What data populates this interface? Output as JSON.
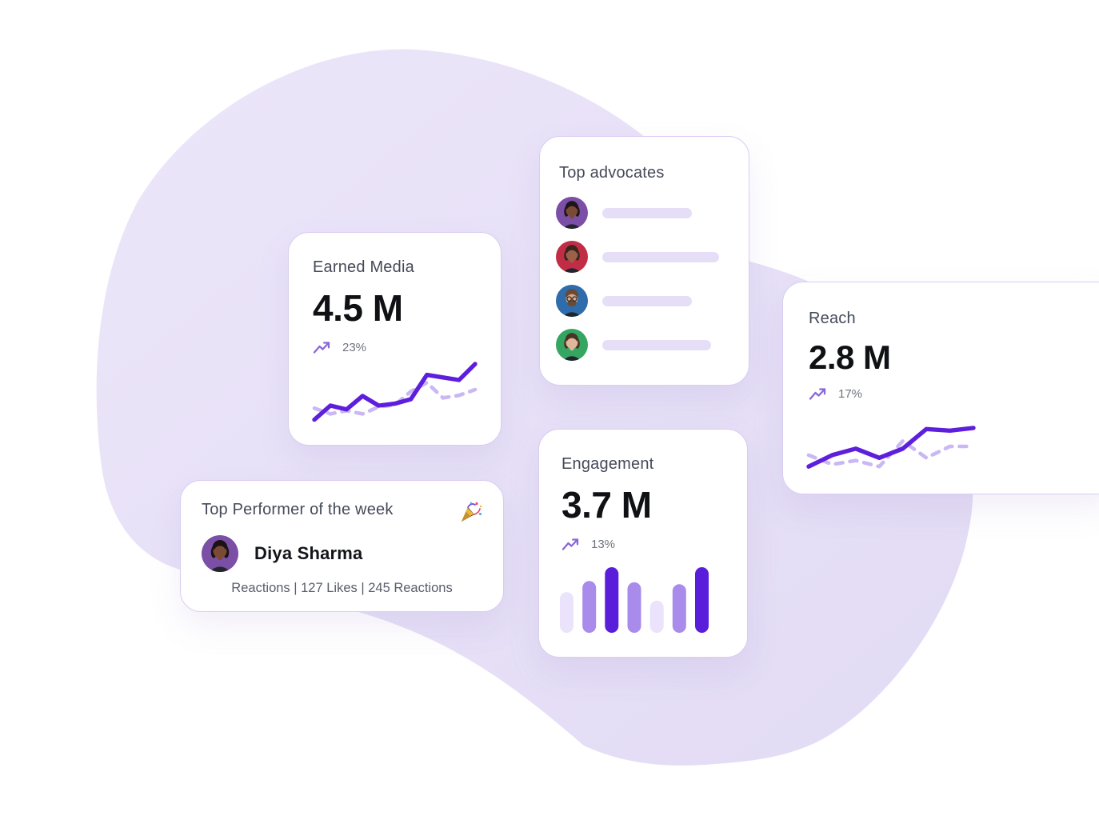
{
  "background": {
    "blob_color_start": "#ece6fa",
    "blob_color_end": "#e2dbf4",
    "card_border_color": "#d9cdf0"
  },
  "cards": {
    "earned_media": {
      "title": "Earned Media",
      "value": "4.5 M",
      "change": "23%"
    },
    "top_advocates": {
      "title": "Top advocates",
      "rows": [
        {
          "avatar": "woman-dark-skin-purple-bg",
          "bg": "#7a4fa5",
          "skin": "#7a4a35",
          "hair": "#1d1518",
          "beard": false,
          "pill_width": 112
        },
        {
          "avatar": "woman-curly-hair-red-bg",
          "bg": "#c22d46",
          "skin": "#9c6249",
          "hair": "#3a2420",
          "beard": false,
          "pill_width": 146
        },
        {
          "avatar": "man-glasses-beard-blue-bg",
          "bg": "#2e6cab",
          "skin": "#d8a888",
          "hair": "#6b4a33",
          "beard": true,
          "pill_width": 112
        },
        {
          "avatar": "person-short-hair-green-bg",
          "bg": "#35a661",
          "skin": "#e0b79b",
          "hair": "#4a3326",
          "beard": false,
          "pill_width": 136
        }
      ]
    },
    "reach": {
      "title": "Reach",
      "value": "2.8 M",
      "change": "17%"
    },
    "engagement": {
      "title": "Engagement",
      "value": "3.7 M",
      "change": "13%"
    },
    "top_performer": {
      "title": "Top Performer of the week",
      "emoji": "🎉",
      "name": "Diya Sharma",
      "avatar": {
        "bg": "#7a4fa5",
        "skin": "#7a4a35",
        "hair": "#1a1316",
        "beard": false
      },
      "stats": "Reactions | 127 Likes | 245 Reactions"
    }
  },
  "chart_data": [
    {
      "type": "line",
      "title": "Earned Media trend sparkline",
      "x": [
        1,
        2,
        3,
        4,
        5,
        6,
        7,
        8,
        9,
        10,
        11
      ],
      "series": [
        {
          "name": "current",
          "color": "#5e1fdd",
          "dashed": false,
          "values": [
            8,
            30,
            24,
            45,
            30,
            33,
            40,
            78,
            74,
            70,
            95
          ]
        },
        {
          "name": "previous",
          "color": "#c9b8f4",
          "dashed": true,
          "values": [
            26,
            17,
            22,
            17,
            28,
            31,
            52,
            66,
            42,
            46,
            55
          ]
        }
      ],
      "ylim": [
        0,
        100
      ],
      "grid": false,
      "legend": "none"
    },
    {
      "type": "line",
      "title": "Reach trend sparkline",
      "x": [
        1,
        2,
        3,
        4,
        5,
        6,
        7,
        8
      ],
      "series": [
        {
          "name": "current",
          "color": "#5e1fdd",
          "dashed": false,
          "values": [
            10,
            31,
            43,
            26,
            43,
            79,
            76,
            81
          ]
        },
        {
          "name": "previous",
          "color": "#c9b8f4",
          "dashed": true,
          "values": [
            31,
            14,
            21,
            10,
            57,
            26,
            47,
            47
          ]
        }
      ],
      "ylim": [
        0,
        100
      ],
      "grid": false,
      "legend": "none"
    },
    {
      "type": "bar",
      "title": "Engagement bars sparkline",
      "categories": [
        1,
        2,
        3,
        4,
        5,
        6,
        7
      ],
      "values": [
        62,
        79,
        100,
        77,
        49,
        74,
        100
      ],
      "tones": [
        "light",
        "medium",
        "dark",
        "medium",
        "light",
        "medium",
        "dark"
      ],
      "palette": {
        "light": "#eae3fb",
        "medium": "#a88bea",
        "dark": "#5a1edb"
      },
      "ylim": [
        0,
        100
      ],
      "grid": false
    }
  ]
}
